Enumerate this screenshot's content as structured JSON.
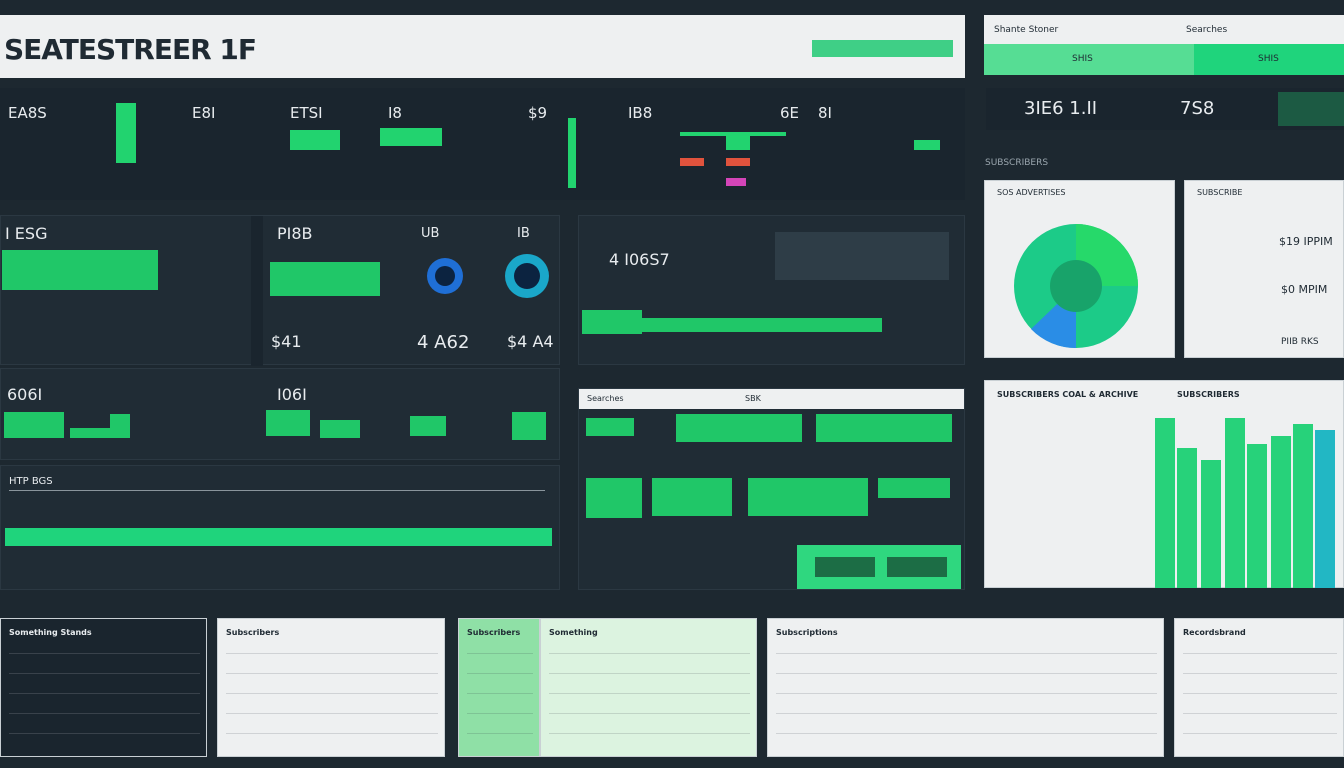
{
  "header": {
    "title": "SEATESTREER 1F"
  },
  "top_right": {
    "label_left": "Shante Stoner",
    "label_right": "Searches",
    "button_left": "SHIS",
    "button_right": "SHIS",
    "metric_1": "3IE6 1.II",
    "metric_2": "7S8"
  },
  "stats_row": {
    "items": [
      "EA8S",
      "E8I",
      "ETSI",
      "I8",
      "$9",
      "IB8",
      "6E",
      "8I"
    ]
  },
  "panels": {
    "left_top": {
      "title_1": "I ESG",
      "title_2": "PI8B",
      "title_3": "UB",
      "title_4": "IB",
      "value_1": "$41",
      "value_2": "4 A62",
      "value_3": "$4 A4"
    },
    "left_mid": {
      "title_1": "606I",
      "title_2": "I06I"
    },
    "left_bottom": {
      "title": "HTP BGS"
    },
    "center_top": {
      "value": "4 I06S7"
    },
    "center_table": {
      "title": "Searches",
      "label": "SBK"
    },
    "right_section_label": "SUBSCRIBERS",
    "donut_card": {
      "title": "SOS ADVERTISES"
    },
    "stats_card": {
      "title": "SUBSCRIBE",
      "value_1": "$19 IPPIM",
      "value_2": "$0 MPIM",
      "footer": "PIIB RKS"
    },
    "bar_card": {
      "title": "SUBSCRIBERS COAL & ARCHIVE",
      "subtitle": "SUBSCRIBERS"
    }
  },
  "bottom": {
    "cards": [
      "Something Stands",
      "Subscribers",
      "Subscribers",
      "Something",
      "Subscriptions",
      "Recordsbrand"
    ]
  }
}
